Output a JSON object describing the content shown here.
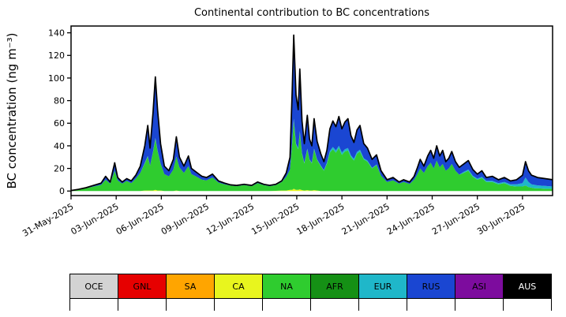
{
  "chart_data": {
    "type": "area",
    "stacked": true,
    "title": "Continental contribution to BC concentrations",
    "ylabel": "BC concentration (ng m⁻³)",
    "ylim": [
      -4,
      146
    ],
    "yticks": [
      0,
      20,
      40,
      60,
      80,
      100,
      120,
      140
    ],
    "xlim_days": [
      0,
      32
    ],
    "xtick_positions": [
      0,
      3,
      6,
      9,
      12,
      15,
      18,
      21,
      24,
      27,
      30
    ],
    "xtick_labels": [
      "31-May-2025",
      "03-Jun-2025",
      "06-Jun-2025",
      "09-Jun-2025",
      "12-Jun-2025",
      "15-Jun-2025",
      "18-Jun-2025",
      "21-Jun-2025",
      "24-Jun-2025",
      "27-Jun-2025",
      "30-Jun-2025"
    ],
    "total_line_color": "#000000",
    "x_days": [
      0,
      0.5,
      1,
      1.5,
      2,
      2.3,
      2.6,
      2.9,
      3.1,
      3.4,
      3.7,
      4,
      4.3,
      4.6,
      4.9,
      5.1,
      5.25,
      5.45,
      5.6,
      5.75,
      5.95,
      6.2,
      6.5,
      6.8,
      7,
      7.2,
      7.5,
      7.8,
      8,
      8.3,
      8.7,
      9,
      9.4,
      9.8,
      10.2,
      10.6,
      11,
      11.5,
      12,
      12.4,
      12.8,
      13.2,
      13.6,
      14,
      14.3,
      14.55,
      14.7,
      14.8,
      14.95,
      15.1,
      15.2,
      15.35,
      15.5,
      15.7,
      15.85,
      16,
      16.15,
      16.35,
      16.6,
      16.8,
      17,
      17.2,
      17.4,
      17.6,
      17.8,
      18,
      18.2,
      18.4,
      18.6,
      18.8,
      19,
      19.2,
      19.45,
      19.7,
      20,
      20.3,
      20.6,
      21,
      21.4,
      21.8,
      22.1,
      22.5,
      22.8,
      23,
      23.2,
      23.45,
      23.7,
      23.9,
      24.1,
      24.3,
      24.5,
      24.7,
      24.9,
      25.1,
      25.3,
      25.55,
      25.8,
      26.1,
      26.4,
      26.7,
      27,
      27.3,
      27.6,
      28,
      28.4,
      28.8,
      29.2,
      29.6,
      30,
      30.2,
      30.4,
      30.6,
      30.8,
      31,
      31.5,
      32
    ],
    "series": [
      {
        "name": "CA",
        "color": "#e8f51e",
        "values": [
          0,
          0,
          0,
          0,
          0,
          0,
          0,
          0,
          0,
          0,
          0,
          0,
          0,
          0,
          0.5,
          0.5,
          0.5,
          0.5,
          1,
          0.5,
          0.5,
          0,
          0,
          0,
          0.5,
          0,
          0,
          0,
          0,
          0,
          0,
          0,
          0,
          0,
          0,
          0,
          0,
          0,
          0,
          0,
          0,
          0,
          0.2,
          0.5,
          0.5,
          1,
          1,
          2,
          1,
          1,
          1.5,
          0.8,
          0.5,
          0.8,
          0.5,
          0.5,
          0.8,
          0.5,
          0,
          0,
          0,
          0,
          0,
          0,
          0,
          0,
          0,
          0,
          0,
          0,
          0,
          0,
          0,
          0,
          0,
          0,
          0,
          0,
          0,
          0,
          0,
          0,
          0,
          0,
          0,
          0,
          0,
          0,
          0,
          0,
          0,
          0,
          0,
          0,
          0,
          0,
          0,
          0,
          0,
          0,
          0,
          0,
          0,
          0,
          0,
          0,
          0,
          0,
          0,
          0,
          0,
          0,
          0,
          0,
          0,
          0
        ]
      },
      {
        "name": "NA",
        "color": "#2fcc2f",
        "values": [
          0.4,
          1.2,
          2.4,
          4,
          5.5,
          10,
          6.5,
          18,
          9.5,
          6.5,
          9,
          7,
          11,
          16,
          24,
          30,
          22,
          34,
          45,
          35,
          24,
          15,
          13,
          19,
          30,
          21,
          16,
          22,
          15,
          13,
          10,
          9.5,
          12,
          7.5,
          6,
          4.8,
          4.3,
          5.2,
          4.3,
          7,
          5.2,
          4.3,
          5,
          7.5,
          12,
          18,
          42,
          60,
          40,
          36,
          50,
          32,
          24,
          36,
          27,
          24,
          36,
          27,
          22,
          18,
          24,
          34,
          37,
          34,
          38,
          32,
          35,
          36,
          30,
          27,
          33,
          35,
          28,
          26,
          20,
          23,
          13.5,
          8,
          9.5,
          6.5,
          8,
          6.3,
          10,
          14.5,
          20,
          16,
          22,
          25,
          20,
          27,
          21,
          24,
          18,
          20,
          24,
          18,
          14.5,
          16,
          18,
          12.5,
          10,
          11.5,
          8,
          8,
          6,
          7,
          4.5,
          4,
          4,
          5,
          3.5,
          3,
          2.5,
          2.5,
          2,
          2
        ]
      },
      {
        "name": "EUR",
        "color": "#1fb7c9",
        "values": [
          0,
          0,
          0,
          0,
          0,
          0,
          0,
          0,
          0,
          0,
          0,
          0,
          0,
          0,
          0.5,
          0.5,
          0,
          0.5,
          1,
          0.5,
          0,
          0,
          0,
          0,
          0,
          0,
          0,
          0,
          0,
          0,
          0,
          0,
          0,
          0,
          0,
          0,
          0,
          0,
          0,
          0,
          0,
          0,
          0,
          0,
          0,
          0,
          1,
          2,
          1,
          1,
          1.5,
          0.7,
          0.5,
          0.7,
          0.5,
          0.5,
          0.7,
          0.5,
          0.5,
          0.5,
          1,
          1.5,
          2,
          2,
          2,
          2,
          2,
          2,
          1.5,
          1.5,
          1.5,
          1.5,
          1,
          1,
          0.5,
          0.5,
          0,
          0,
          0,
          0,
          0,
          0,
          0,
          0,
          0,
          0,
          0,
          0,
          0,
          0,
          0,
          0,
          0,
          0,
          0,
          0,
          0,
          1,
          1,
          1,
          1,
          1,
          1,
          1,
          1,
          1,
          1.5,
          2,
          3,
          7,
          4.5,
          3,
          3,
          2.5,
          2.5,
          2
        ]
      },
      {
        "name": "RUS",
        "color": "#1a46d2",
        "values": [
          0.1,
          0.3,
          0.6,
          1,
          1.5,
          3,
          1.5,
          7,
          2.5,
          1.5,
          2,
          2,
          3,
          6,
          15,
          27,
          15.5,
          35,
          54,
          36,
          17.5,
          7,
          5,
          9,
          17.5,
          9,
          6,
          9,
          5,
          4,
          3,
          2.5,
          3,
          1.5,
          1,
          0.7,
          0.7,
          0.8,
          0.7,
          1,
          0.8,
          0.7,
          0.8,
          1,
          3.5,
          11,
          46,
          74,
          43,
          34,
          55,
          28.5,
          17,
          29.5,
          18,
          15,
          26.5,
          16,
          10.5,
          7.5,
          11,
          19.5,
          23,
          21,
          26,
          21,
          24,
          26,
          17.5,
          14.5,
          19.5,
          21.5,
          13,
          11,
          7.5,
          8.5,
          4.5,
          2,
          2.5,
          1.5,
          2,
          1.7,
          3,
          5.5,
          8,
          6,
          9,
          11,
          9,
          13,
          10,
          12,
          8,
          9,
          11,
          8,
          6.5,
          7,
          8,
          5.5,
          4,
          5.5,
          3,
          4,
          3,
          4,
          3,
          4,
          7,
          14,
          10,
          8,
          7.5,
          7,
          6.5,
          6
        ]
      }
    ],
    "legend": [
      {
        "label": "OCE",
        "color": "#d3d3d3",
        "text": "#000000"
      },
      {
        "label": "GNL",
        "color": "#e60000",
        "text": "#000000"
      },
      {
        "label": "SA",
        "color": "#ffa500",
        "text": "#000000"
      },
      {
        "label": "CA",
        "color": "#e8f51e",
        "text": "#000000"
      },
      {
        "label": "NA",
        "color": "#2fcc2f",
        "text": "#000000"
      },
      {
        "label": "AFR",
        "color": "#159015",
        "text": "#000000"
      },
      {
        "label": "EUR",
        "color": "#1fb7c9",
        "text": "#000000"
      },
      {
        "label": "RUS",
        "color": "#1a46d2",
        "text": "#000000"
      },
      {
        "label": "ASI",
        "color": "#7d0c9e",
        "text": "#000000"
      },
      {
        "label": "AUS",
        "color": "#000000",
        "text": "#ffffff"
      }
    ]
  }
}
